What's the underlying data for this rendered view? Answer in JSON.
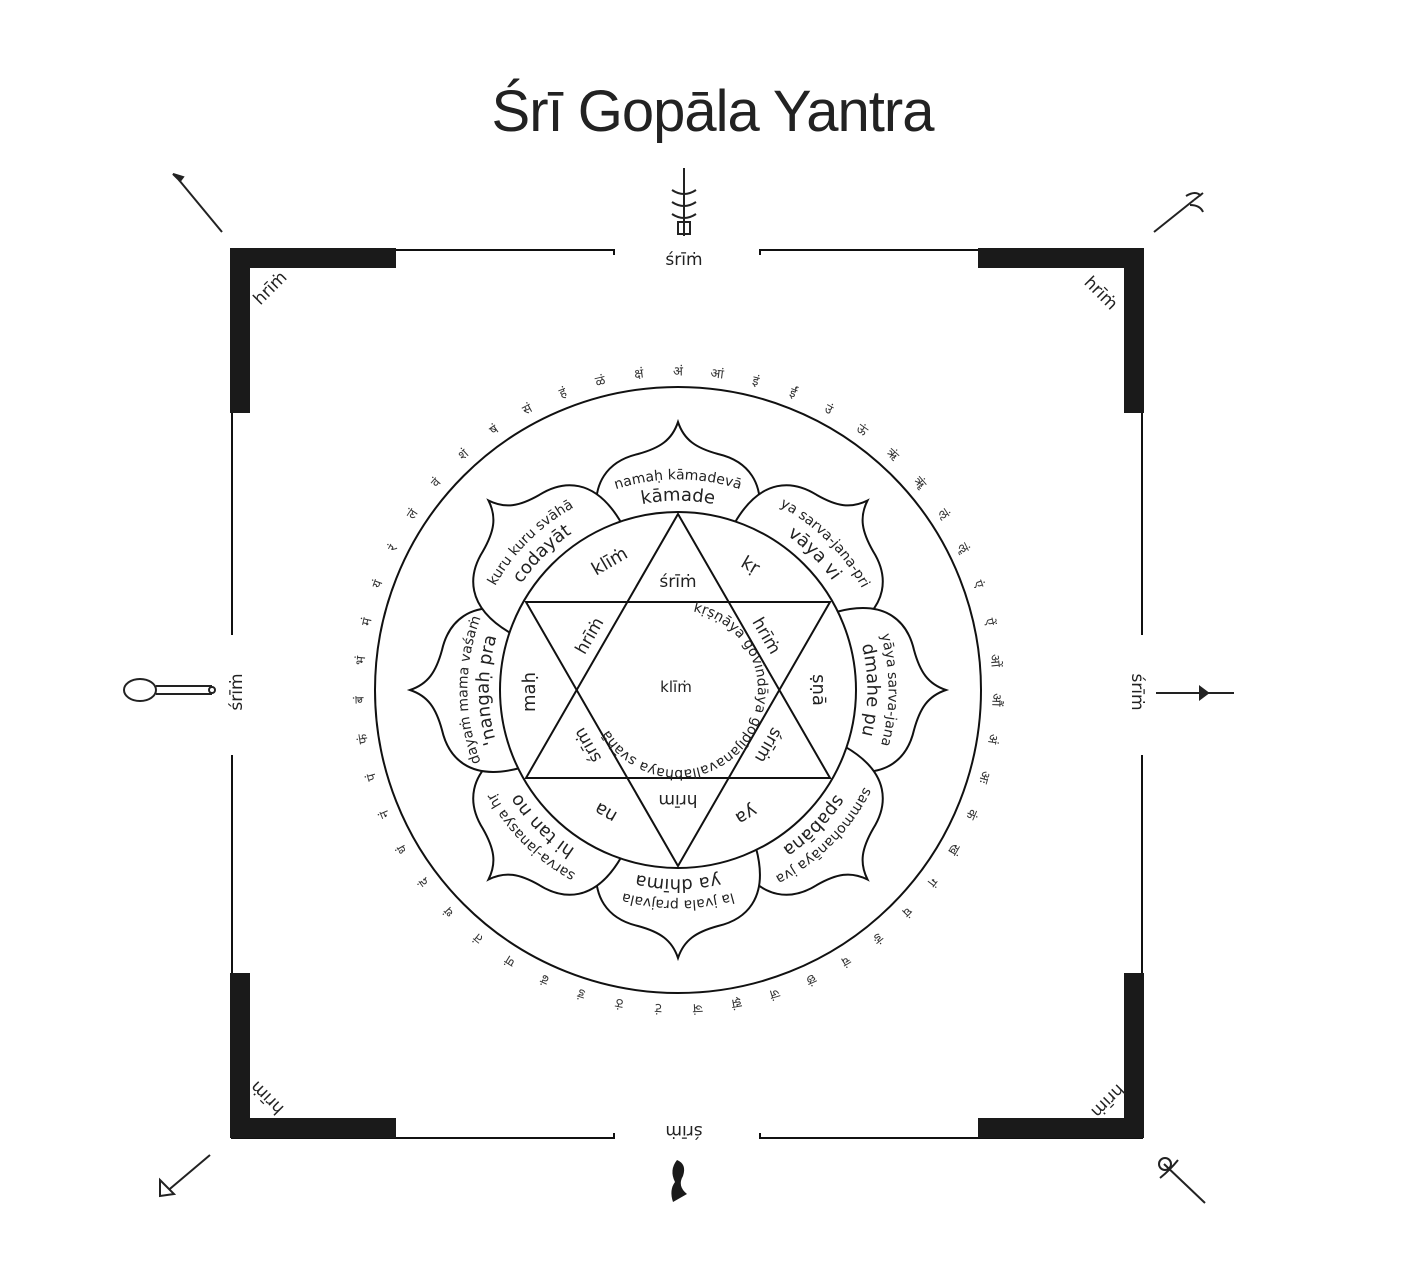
{
  "title": "Śrī Gopāla Yantra",
  "gate_labels": {
    "top": "śrīṁ",
    "bottom": "śrīṁ",
    "left": "śrīṁ",
    "right": "śrīṁ"
  },
  "corner_labels": {
    "top_left": "hrīṁ",
    "top_right": "hrīṁ",
    "bottom_left": "hrīṁ",
    "bottom_right": "hrīṁ"
  },
  "weapon_icons": {
    "top_left": "spear-icon",
    "top": "ladder-spear-icon",
    "top_right": "trident-icon",
    "left": "mace-icon",
    "right": "arrow-icon",
    "bottom_left": "axe-icon",
    "bottom": "hand-mudra-icon",
    "bottom_right": "sword-icon"
  },
  "outer_syllables": [
    "अं",
    "आं",
    "इं",
    "ईं",
    "उं",
    "ऊं",
    "ऋं",
    "ॠं",
    "ऌं",
    "ॡं",
    "एं",
    "ऐं",
    "ओं",
    "औं",
    "अं",
    "अः",
    "कं",
    "खं",
    "गं",
    "घं",
    "ङं",
    "चं",
    "छं",
    "जं",
    "झं",
    "ञं",
    "टं",
    "ठं",
    "डं",
    "ढं",
    "णं",
    "तं",
    "थं",
    "दं",
    "धं",
    "नं",
    "पं",
    "फं",
    "बं",
    "भं",
    "मं",
    "यं",
    "रं",
    "लं",
    "वं",
    "शं",
    "षं",
    "सं",
    "हं",
    "ळं",
    "क्षं"
  ],
  "petals": [
    {
      "outer": "namaḥ kāmadevā",
      "inner": "kāmade"
    },
    {
      "outer": "ya sarva-jana-pri",
      "inner": "vāya vi"
    },
    {
      "outer": "yāya sarva-jana",
      "inner": "dmahe pu"
    },
    {
      "outer": "sammohanāya jva",
      "inner": "spabāna"
    },
    {
      "outer": "la jvala prajvala",
      "inner": "ya dhīma"
    },
    {
      "outer": "sarva-janasya hṛ",
      "inner": "hi tan no"
    },
    {
      "outer": "dayaṁ mama vaśaṁ",
      "inner": "'nangaḥ pra"
    },
    {
      "outer": "kuru kuru svāhā",
      "inner": "codayāt"
    }
  ],
  "hexagram_points": [
    "śrīṁ",
    "hrīṁ",
    "śrīṁ",
    "hrīm",
    "śrīṁ",
    "hrīṁ"
  ],
  "hexagram_outer": [
    "klīṁ",
    "kṛ",
    "ṣṇā",
    "ya",
    "na",
    "maḥ"
  ],
  "center_mantra": "kṛṣṇāya govindāya gopījanavallabhāya svāhā",
  "center_seed": "klīṁ"
}
